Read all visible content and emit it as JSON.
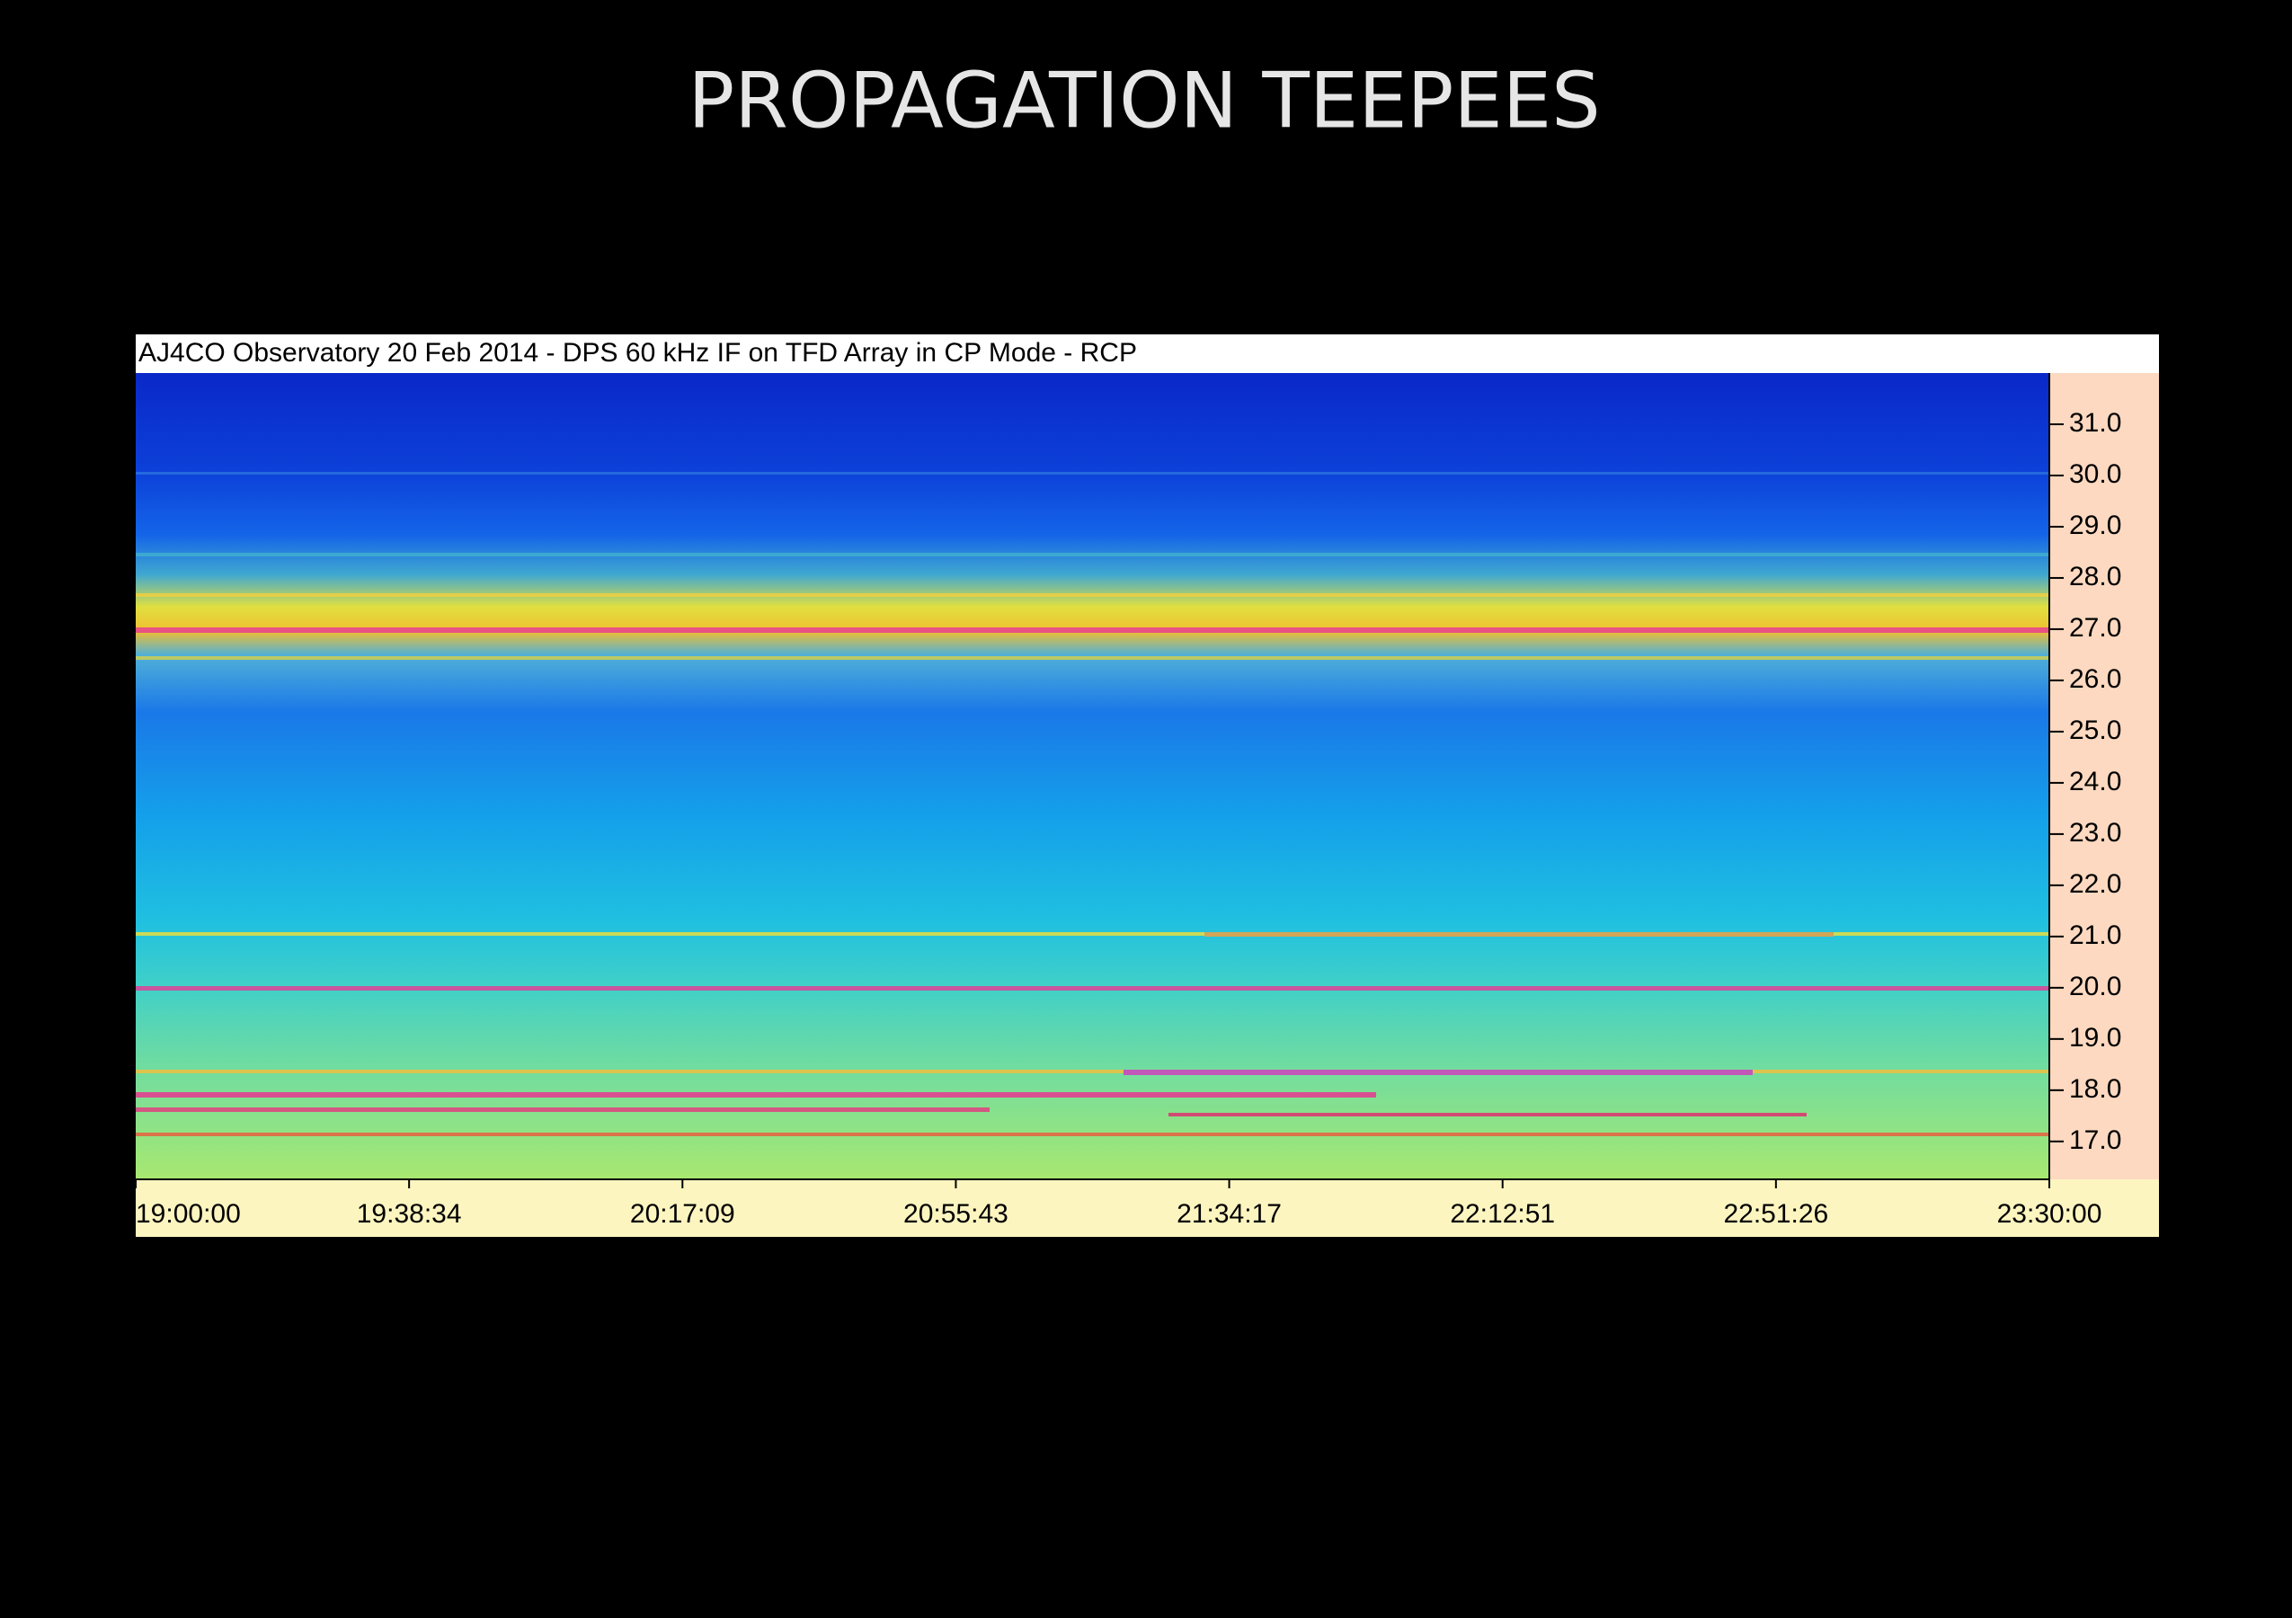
{
  "title": "PROPAGATION TEEPEES",
  "chart_data": {
    "type": "spectrogram",
    "title": "AJ4CO Observatory 20 Feb 2014 - DPS 60 kHz IF on TFD Array in CP Mode - RCP",
    "xticks": [
      "19:00:00",
      "19:38:34",
      "20:17:09",
      "20:55:43",
      "21:34:17",
      "22:12:51",
      "22:51:26",
      "23:30:00"
    ],
    "ylim": [
      16.26,
      32.0
    ],
    "yticks": [
      {
        "value": 17,
        "label": "17.0"
      },
      {
        "value": 18,
        "label": "18.0"
      },
      {
        "value": 19,
        "label": "19.0"
      },
      {
        "value": 20,
        "label": "20.0"
      },
      {
        "value": 21,
        "label": "21.0"
      },
      {
        "value": 22,
        "label": "22.0"
      },
      {
        "value": 23,
        "label": "23.0"
      },
      {
        "value": 24,
        "label": "24.0"
      },
      {
        "value": 25,
        "label": "25.0"
      },
      {
        "value": 26,
        "label": "26.0"
      },
      {
        "value": 27,
        "label": "27.0"
      },
      {
        "value": 28,
        "label": "28.0"
      },
      {
        "value": 29,
        "label": "29.0"
      },
      {
        "value": 30,
        "label": "30.0"
      },
      {
        "value": 31,
        "label": "31.0"
      }
    ]
  }
}
